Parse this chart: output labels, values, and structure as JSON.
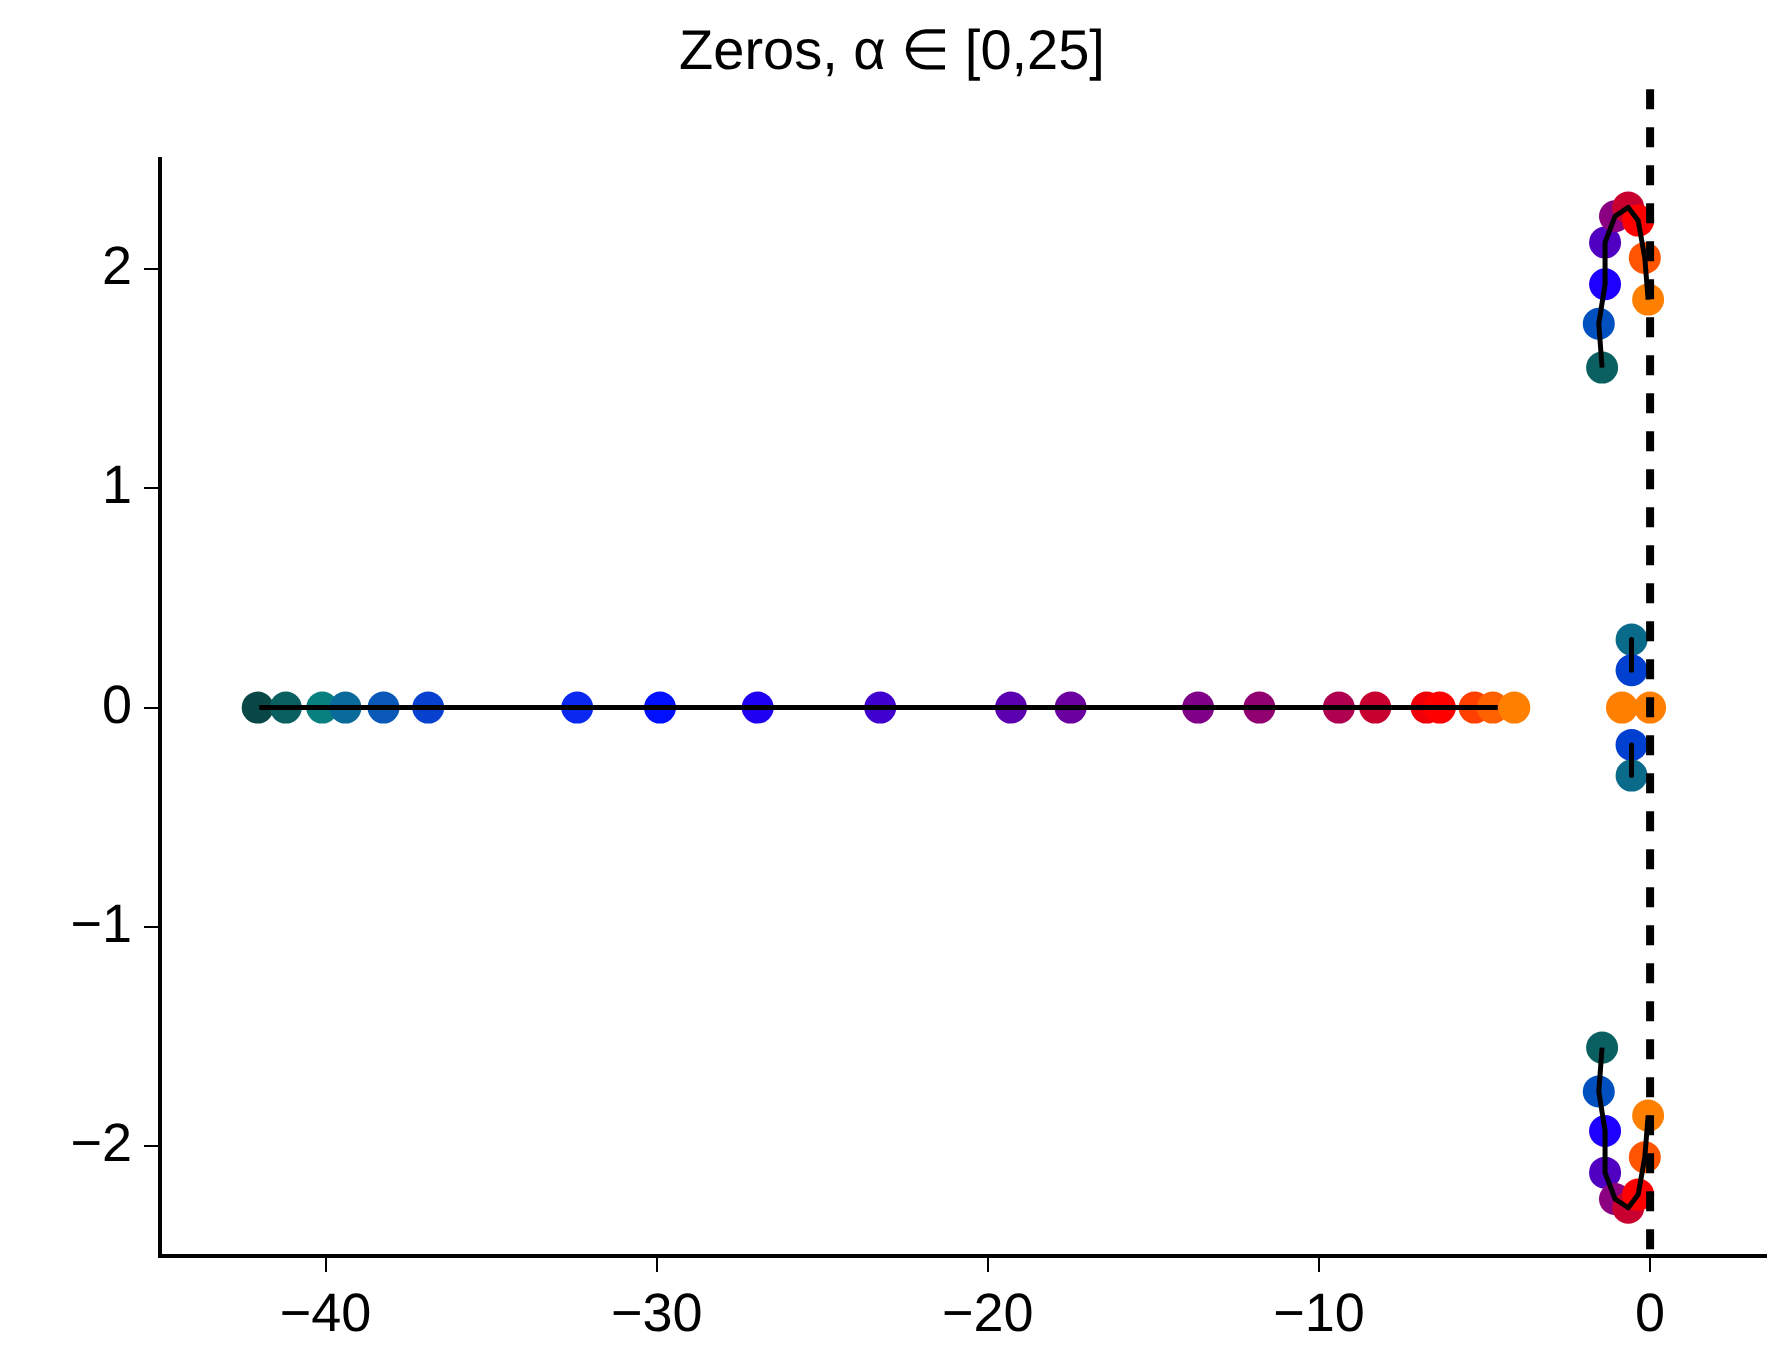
{
  "chart_data": {
    "type": "scatter",
    "title": "Zeros, α ∈ [0,25]",
    "xlim": [
      -45,
      3.5
    ],
    "xticks": [
      {
        "value": -40,
        "label": "−40"
      },
      {
        "value": -30,
        "label": "−30"
      },
      {
        "value": -20,
        "label": "−20"
      },
      {
        "value": -10,
        "label": "−10"
      },
      {
        "value": 0,
        "label": "0"
      }
    ],
    "ylim": [
      -2.5,
      2.5
    ],
    "yticks": [
      {
        "value": -2,
        "label": "−2"
      },
      {
        "value": -1,
        "label": "−1"
      },
      0,
      1,
      2
    ],
    "marker": "circle",
    "legend": false,
    "series": [
      {
        "x": [
          -42.05,
          -41.2,
          -40.1,
          -39.4,
          -38.25,
          -36.9,
          -32.4,
          -29.9,
          -26.95,
          -23.25,
          -19.3,
          -17.5,
          -13.65,
          -11.8,
          -9.4,
          -8.3,
          -6.75,
          -6.35,
          -5.3,
          -4.75,
          -4.1,
          -1.45,
          -1.55,
          -1.36,
          -1.36,
          -1.06,
          -0.66,
          -0.36,
          -0.16,
          -0.06,
          -1.45,
          -1.55,
          -1.36,
          -1.36,
          -1.06,
          -0.66,
          -0.36,
          -0.16,
          -0.06,
          -0.56,
          -0.56,
          -0.85,
          0,
          -0.56,
          -0.56
        ],
        "values": [
          0,
          0,
          0,
          0,
          0,
          0,
          0,
          0,
          0,
          0,
          0,
          0,
          0,
          0,
          0,
          0,
          0,
          0,
          0,
          0,
          0,
          1.55,
          1.75,
          1.93,
          2.12,
          2.24,
          2.28,
          2.22,
          2.05,
          1.86,
          -1.55,
          -1.75,
          -1.93,
          -2.12,
          -2.24,
          -2.28,
          -2.22,
          -2.05,
          -1.86,
          0.31,
          0.17,
          0,
          0,
          -0.17,
          -0.31
        ],
        "colors": [
          "#0a4848",
          "#0a6060",
          "#088080",
          "#0a6a9a",
          "#0a58b8",
          "#0840d0",
          "#0a28f0",
          "#0010ff",
          "#2000f0",
          "#4000d0",
          "#5a00b0",
          "#6a00a0",
          "#800088",
          "#900070",
          "#b00050",
          "#c80030",
          "#f00008",
          "#ff0000",
          "#ff4000",
          "#ff6000",
          "#ff8000",
          "#0a6060",
          "#0050c0",
          "#1e00ff",
          "#5000c0",
          "#8a0080",
          "#c80030",
          "#ff0000",
          "#ff5500",
          "#ff8000",
          "#0a6060",
          "#0050c0",
          "#1e00ff",
          "#5000c0",
          "#8a0080",
          "#c80030",
          "#ff0000",
          "#ff5500",
          "#ff8000",
          "#0a6a8a",
          "#0040d0",
          "#ff8000",
          "#ff8000",
          "#0040d0",
          "#0a6a8a"
        ]
      },
      {
        "type": "line",
        "color": "#000000",
        "marker": "none",
        "line_style": "solid",
        "x": [
          -42,
          -4.6
        ],
        "values": [
          0,
          0
        ]
      },
      {
        "type": "line",
        "color": "#000000",
        "marker": "none",
        "line_style": "solid",
        "x": [
          -1.45,
          -1.55,
          -1.36,
          -1.36,
          -1.06,
          -0.66,
          -0.36,
          -0.16,
          -0.06
        ],
        "values": [
          1.55,
          1.75,
          1.93,
          2.12,
          2.24,
          2.28,
          2.22,
          2.05,
          1.86
        ]
      },
      {
        "type": "line",
        "color": "#000000",
        "marker": "none",
        "line_style": "solid",
        "x": [
          -1.45,
          -1.55,
          -1.36,
          -1.36,
          -1.06,
          -0.66,
          -0.36,
          -0.16,
          -0.06
        ],
        "values": [
          -1.55,
          -1.75,
          -1.93,
          -2.12,
          -2.24,
          -2.28,
          -2.22,
          -2.05,
          -1.86
        ]
      },
      {
        "type": "line",
        "color": "#000000",
        "marker": "none",
        "line_style": "solid",
        "x": [
          -0.56,
          -0.56
        ],
        "values": [
          0.31,
          0.17
        ]
      },
      {
        "type": "line",
        "color": "#000000",
        "marker": "none",
        "line_style": "solid",
        "x": [
          -0.56,
          -0.56
        ],
        "values": [
          -0.17,
          -0.31
        ]
      }
    ],
    "ref_lines": [
      {
        "axis": "x",
        "value": 0,
        "color": "#000000",
        "line_style": "dashed"
      }
    ]
  }
}
